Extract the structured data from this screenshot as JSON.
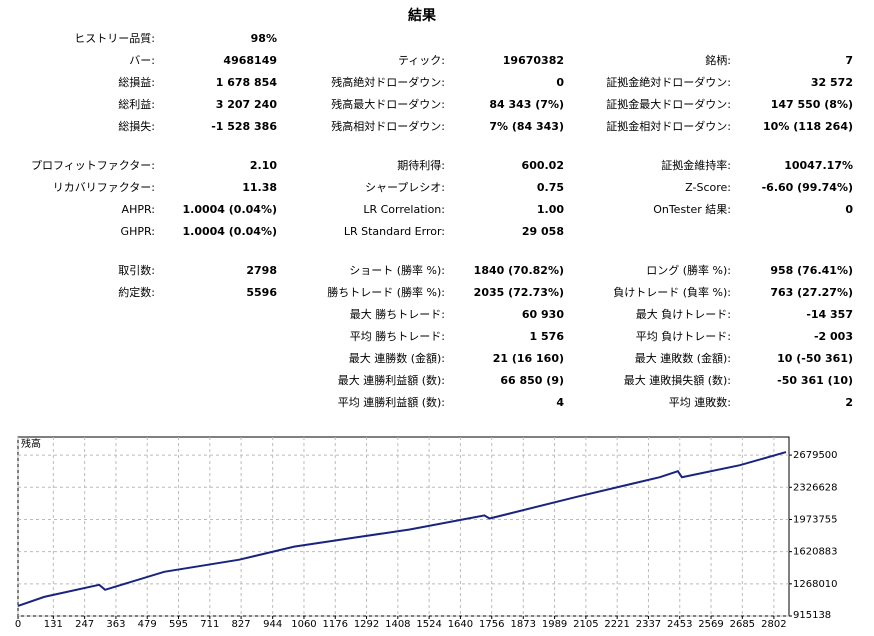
{
  "title": "結果",
  "sections": [
    [
      [
        {
          "label": "ヒストリー品質:",
          "value": "98%"
        },
        null,
        null
      ],
      [
        {
          "label": "バー:",
          "value": "4968149"
        },
        {
          "label": "ティック:",
          "value": "19670382"
        },
        {
          "label": "銘柄:",
          "value": "7"
        }
      ],
      [
        {
          "label": "総損益:",
          "value": "1 678 854"
        },
        {
          "label": "残高絶対ドローダウン:",
          "value": "0"
        },
        {
          "label": "証拠金絶対ドローダウン:",
          "value": "32 572"
        }
      ],
      [
        {
          "label": "総利益:",
          "value": "3 207 240"
        },
        {
          "label": "残高最大ドローダウン:",
          "value": "84 343 (7%)"
        },
        {
          "label": "証拠金最大ドローダウン:",
          "value": "147 550 (8%)"
        }
      ],
      [
        {
          "label": "総損失:",
          "value": "-1 528 386"
        },
        {
          "label": "残高相対ドローダウン:",
          "value": "7% (84 343)"
        },
        {
          "label": "証拠金相対ドローダウン:",
          "value": "10% (118 264)"
        }
      ]
    ],
    [
      [
        {
          "label": "プロフィットファクター:",
          "value": "2.10"
        },
        {
          "label": "期待利得:",
          "value": "600.02"
        },
        {
          "label": "証拠金維持率:",
          "value": "10047.17%"
        }
      ],
      [
        {
          "label": "リカバリファクター:",
          "value": "11.38"
        },
        {
          "label": "シャープレシオ:",
          "value": "0.75"
        },
        {
          "label": "Z-Score:",
          "value": "-6.60 (99.74%)"
        }
      ],
      [
        {
          "label": "AHPR:",
          "value": "1.0004 (0.04%)"
        },
        {
          "label": "LR Correlation:",
          "value": "1.00"
        },
        {
          "label": "OnTester 結果:",
          "value": "0"
        }
      ],
      [
        {
          "label": "GHPR:",
          "value": "1.0004 (0.04%)"
        },
        {
          "label": "LR Standard Error:",
          "value": "29 058"
        },
        null
      ]
    ],
    [
      [
        {
          "label": "取引数:",
          "value": "2798"
        },
        {
          "label": "ショート (勝率 %):",
          "value": "1840 (70.82%)"
        },
        {
          "label": "ロング (勝率 %):",
          "value": "958 (76.41%)"
        }
      ],
      [
        {
          "label": "約定数:",
          "value": "5596"
        },
        {
          "label": "勝ちトレード (勝率 %):",
          "value": "2035 (72.73%)"
        },
        {
          "label": "負けトレード (負率 %):",
          "value": "763 (27.27%)"
        }
      ],
      [
        null,
        {
          "label": "最大 勝ちトレード:",
          "value": "60 930"
        },
        {
          "label": "最大 負けトレード:",
          "value": "-14 357"
        }
      ],
      [
        null,
        {
          "label": "平均 勝ちトレード:",
          "value": "1 576"
        },
        {
          "label": "平均 負けトレード:",
          "value": "-2 003"
        }
      ],
      [
        null,
        {
          "label": "最大 連勝数 (金額):",
          "value": "21 (16 160)"
        },
        {
          "label": "最大 連敗数 (金額):",
          "value": "10 (-50 361)"
        }
      ],
      [
        null,
        {
          "label": "最大 連勝利益額 (数):",
          "value": "66 850 (9)"
        },
        {
          "label": "最大 連敗損失額 (数):",
          "value": "-50 361 (10)"
        }
      ],
      [
        null,
        {
          "label": "平均 連勝利益額 (数):",
          "value": "4"
        },
        {
          "label": "平均 連敗数:",
          "value": "2"
        }
      ]
    ]
  ],
  "balance_chart": {
    "type": "line",
    "label": "残高",
    "color": "#1a237e",
    "xlim": [
      0,
      2858
    ],
    "ylim": [
      915138,
      2878000
    ],
    "xticks": [
      0,
      131,
      247,
      363,
      479,
      595,
      711,
      827,
      944,
      1060,
      1176,
      1292,
      1408,
      1524,
      1640,
      1756,
      1873,
      1989,
      2105,
      2221,
      2337,
      2453,
      2569,
      2685,
      2802
    ],
    "yticks": [
      915138,
      1268010,
      1620883,
      1973755,
      2326628,
      2679500
    ],
    "grid": true,
    "x": [
      0,
      97,
      301,
      323,
      542,
      820,
      1024,
      1247,
      1452,
      1729,
      1748,
      2064,
      2379,
      2446,
      2461,
      2676,
      2847
    ],
    "values": [
      1025400,
      1124600,
      1257000,
      1202000,
      1400300,
      1532600,
      1676000,
      1775200,
      1863400,
      2017800,
      1984800,
      2216300,
      2437000,
      2503000,
      2437000,
      2569200,
      2712500
    ]
  }
}
